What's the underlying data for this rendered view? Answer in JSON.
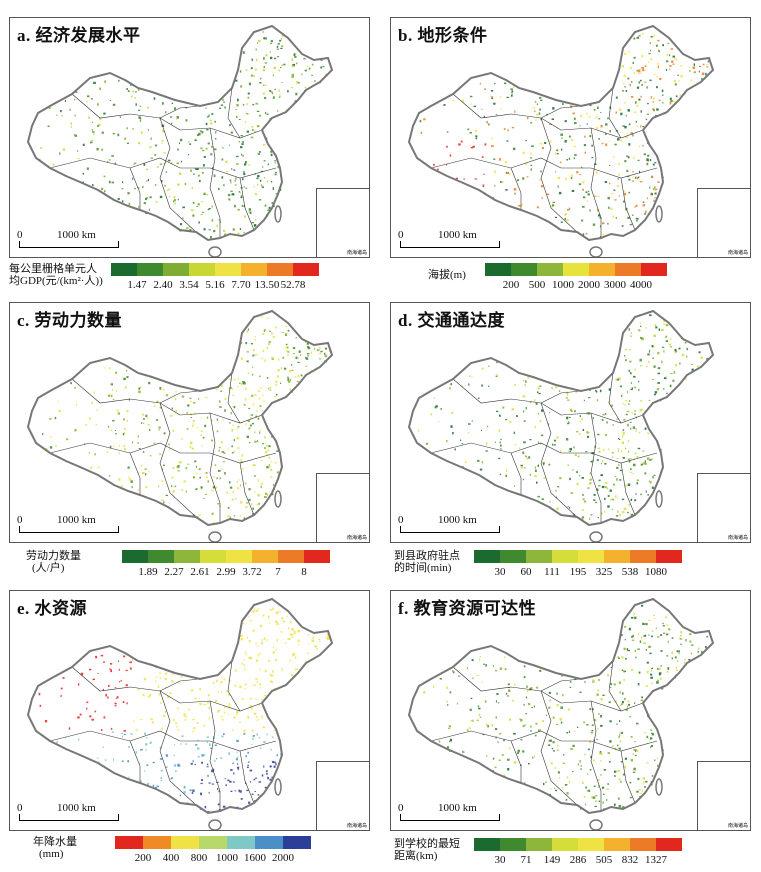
{
  "scale_zero": "0",
  "scale_distance": "1000 km",
  "inset_caption": "南海诸岛",
  "panels": [
    {
      "title": "a. 经济发展水平",
      "legend_label_lines": [
        "每公里栅格单元人",
        "均GDP(元/(km²·人))"
      ],
      "ticks": [
        "1.47",
        "2.40",
        "3.54",
        "5.16",
        "7.70",
        "13.50",
        "52.78"
      ],
      "colors": [
        "#1a6b2d",
        "#3f8a2e",
        "#7fad33",
        "#c9d734",
        "#efe245",
        "#f4b12e",
        "#ec7a27",
        "#e2271e"
      ]
    },
    {
      "title": "b. 地形条件",
      "legend_label_lines": [
        "海拔(m)"
      ],
      "ticks": [
        "200",
        "500",
        "1000",
        "2000",
        "3000",
        "4000"
      ],
      "colors": [
        "#1a6b2d",
        "#3f8a2e",
        "#8db63a",
        "#e8e23c",
        "#f4b12e",
        "#ec7a27",
        "#e2271e"
      ]
    },
    {
      "title": "c. 劳动力数量",
      "legend_label_lines": [
        "劳动力数量",
        "(人/户)"
      ],
      "ticks": [
        "1.89",
        "2.27",
        "2.61",
        "2.99",
        "3.72",
        "7",
        "8"
      ],
      "colors": [
        "#1a6b2d",
        "#3f8a2e",
        "#8db63a",
        "#d4dd3a",
        "#efe245",
        "#f4b12e",
        "#ec7a27",
        "#e2271e"
      ]
    },
    {
      "title": "d. 交通通达度",
      "legend_label_lines": [
        "到县政府驻点",
        "的时间(min)"
      ],
      "ticks": [
        "30",
        "60",
        "111",
        "195",
        "325",
        "538",
        "1080"
      ],
      "colors": [
        "#1a6b2d",
        "#3f8a2e",
        "#8db63a",
        "#d4dd3a",
        "#efe245",
        "#f4b12e",
        "#ec7a27",
        "#e2271e"
      ]
    },
    {
      "title": "e. 水资源",
      "legend_label_lines": [
        "年降水量",
        "(mm)"
      ],
      "ticks": [
        "200",
        "400",
        "800",
        "1000",
        "1600",
        "2000"
      ],
      "colors": [
        "#e2271e",
        "#f08a25",
        "#efe245",
        "#b8d86a",
        "#7fc8c6",
        "#4a8fc8",
        "#2c3f98"
      ]
    },
    {
      "title": "f. 教育资源可达性",
      "legend_label_lines": [
        "到学校的最短",
        "距离(km)"
      ],
      "ticks": [
        "30",
        "71",
        "149",
        "286",
        "505",
        "832",
        "1327"
      ],
      "colors": [
        "#1a6b2d",
        "#3f8a2e",
        "#8db63a",
        "#d4dd3a",
        "#efe245",
        "#f4b12e",
        "#ec7a27",
        "#e2271e"
      ]
    }
  ]
}
